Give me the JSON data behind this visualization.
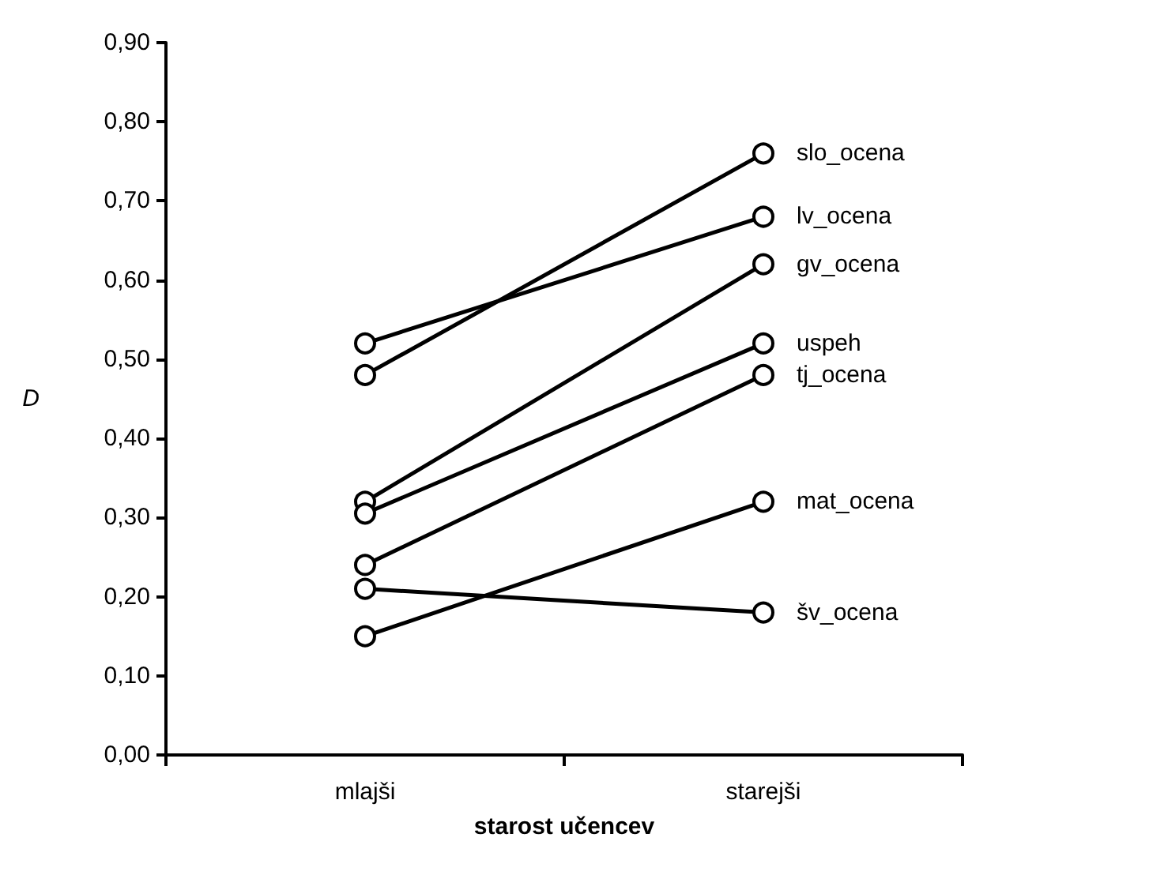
{
  "chart_data": {
    "type": "line",
    "xlabel": "starost učencev",
    "ylabel": "D",
    "categories": [
      "mlajši",
      "starejši"
    ],
    "series": [
      {
        "name": "slo_ocena",
        "color": "#000000",
        "values": [
          0.48,
          0.76
        ]
      },
      {
        "name": "lv_ocena",
        "color": "#000000",
        "values": [
          0.52,
          0.68
        ]
      },
      {
        "name": "gv_ocena",
        "color": "#000000",
        "values": [
          0.32,
          0.62
        ]
      },
      {
        "name": "uspeh",
        "color": "#000000",
        "values": [
          0.305,
          0.52
        ]
      },
      {
        "name": "tj_ocena",
        "color": "#000000",
        "values": [
          0.24,
          0.48
        ]
      },
      {
        "name": "mat_ocena",
        "color": "#000000",
        "values": [
          0.15,
          0.32
        ]
      },
      {
        "name": "šv_ocena",
        "color": "#000000",
        "values": [
          0.21,
          0.18
        ]
      }
    ],
    "ylim": [
      0,
      0.9
    ],
    "yticks": [
      {
        "value": 0,
        "label": "0,00"
      },
      {
        "value": 0.1,
        "label": "0,10"
      },
      {
        "value": 0.2,
        "label": "0,20"
      },
      {
        "value": 0.3,
        "label": "0,30"
      },
      {
        "value": 0.4,
        "label": "0,40"
      },
      {
        "value": 0.5,
        "label": "0,50"
      },
      {
        "value": 0.6,
        "label": "0,60"
      },
      {
        "value": 0.7,
        "label": "0,70"
      },
      {
        "value": 0.8,
        "label": "0,80"
      },
      {
        "value": 0.9,
        "label": "0,90"
      }
    ],
    "grid": false,
    "legend": false,
    "marker": "circle",
    "line_style": "solid"
  }
}
